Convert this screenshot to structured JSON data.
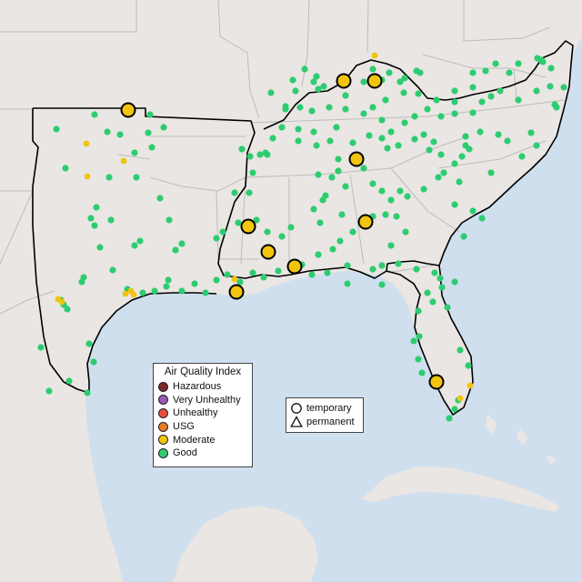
{
  "legend": {
    "title": "Air Quality Index",
    "categories": [
      {
        "label": "Hazardous",
        "color": "#7e2a2a"
      },
      {
        "label": "Very Unhealthy",
        "color": "#9b59b6"
      },
      {
        "label": "Unhealthy",
        "color": "#e74c3c"
      },
      {
        "label": "USG",
        "color": "#e67e22"
      },
      {
        "label": "Moderate",
        "color": "#f1c40f"
      },
      {
        "label": "Good",
        "color": "#2ecc71"
      }
    ]
  },
  "monitor_types": [
    {
      "label": "temporary",
      "icon": "circle-icon"
    },
    {
      "label": "permanent",
      "icon": "triangle-icon"
    }
  ],
  "map_colors": {
    "water": "#cfdfee",
    "land": "#e9e6e3",
    "region_outline": "#000000",
    "state_border": "#bbbbbb"
  }
}
